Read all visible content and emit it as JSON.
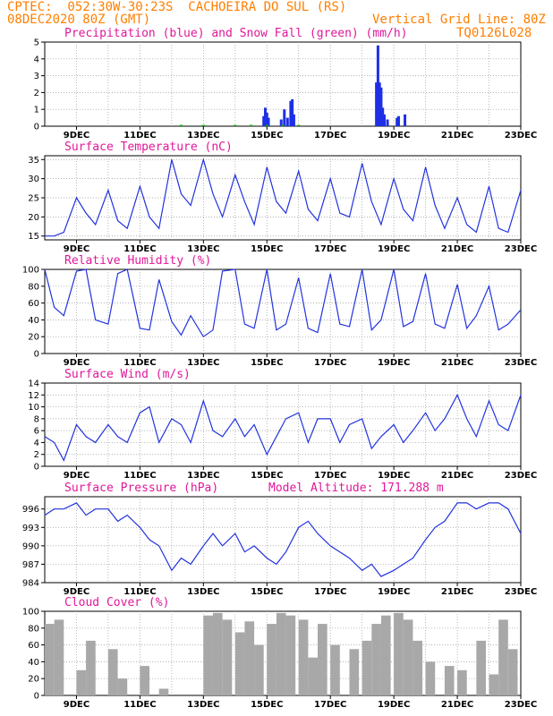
{
  "header": {
    "line1_left": "CPTEC:  052:30W-30:23S  CACHOEIRA DO SUL (RS)",
    "line2_left": "08DEC2020 80Z (GMT)",
    "line2_right": "Vertical Grid Line: 80Z",
    "line3_right": "TQ0126L028"
  },
  "colors": {
    "header": "#ff7f00",
    "title": "#e0189a",
    "line": "#2233dd",
    "rain": "#1e2fe6",
    "snow": "#00b000",
    "cloud": "#a8a8a8",
    "grid": "#999999"
  },
  "x_labels": [
    "9DEC",
    "11DEC",
    "13DEC",
    "15DEC",
    "17DEC",
    "19DEC",
    "21DEC",
    "23DEC"
  ],
  "chart_data": [
    {
      "type": "bar",
      "title": "Precipitation (blue) and Snow Fall (green) (mm/h)",
      "ylim": [
        0,
        5
      ],
      "yticks": [
        "0",
        "1",
        "2",
        "3",
        "4",
        "5"
      ],
      "series": [
        {
          "name": "precipitation",
          "color": "blue",
          "x": [
            14.9,
            14.95,
            15.0,
            15.05,
            15.45,
            15.55,
            15.65,
            15.75,
            15.8,
            15.85,
            18.45,
            18.5,
            18.55,
            18.6,
            18.65,
            18.7,
            18.8,
            19.1,
            19.15,
            19.35
          ],
          "values": [
            0.6,
            1.1,
            0.8,
            0.5,
            0.4,
            1.0,
            0.5,
            1.5,
            1.6,
            0.7,
            2.6,
            4.8,
            2.6,
            2.3,
            1.1,
            0.7,
            0.4,
            0.5,
            0.6,
            0.7
          ]
        },
        {
          "name": "snow fall",
          "color": "green",
          "x": [
            12.3,
            13.0,
            14.0,
            14.5,
            15.0,
            15.5,
            16.0
          ],
          "values": [
            0.08,
            0.08,
            0.08,
            0.08,
            0.08,
            0.08,
            0.08
          ]
        }
      ]
    },
    {
      "type": "line",
      "title": "Surface Temperature (nC)",
      "ylim": [
        14,
        36
      ],
      "yticks": [
        "15",
        "20",
        "25",
        "30",
        "35"
      ],
      "x": [
        8.0,
        8.3,
        8.6,
        9.0,
        9.3,
        9.6,
        10.0,
        10.3,
        10.6,
        11.0,
        11.3,
        11.6,
        12.0,
        12.3,
        12.6,
        13.0,
        13.3,
        13.6,
        14.0,
        14.3,
        14.6,
        15.0,
        15.3,
        15.6,
        16.0,
        16.3,
        16.6,
        17.0,
        17.3,
        17.6,
        18.0,
        18.3,
        18.6,
        19.0,
        19.3,
        19.6,
        20.0,
        20.3,
        20.6,
        21.0,
        21.3,
        21.6,
        22.0,
        22.3,
        22.6,
        23.0
      ],
      "values": [
        15,
        15,
        16,
        25,
        21,
        18,
        27,
        19,
        17,
        28,
        20,
        17,
        35,
        26,
        23,
        35,
        26,
        20,
        31,
        24,
        18,
        33,
        24,
        21,
        32,
        22,
        19,
        30,
        21,
        20,
        34,
        24,
        18,
        30,
        22,
        19,
        33,
        23,
        17,
        25,
        18,
        16,
        28,
        17,
        16,
        27
      ]
    },
    {
      "type": "line",
      "title": "Relative Humidity (%)",
      "ylim": [
        0,
        100
      ],
      "yticks": [
        "0",
        "20",
        "40",
        "60",
        "80",
        "100"
      ],
      "x": [
        8.0,
        8.3,
        8.6,
        9.0,
        9.3,
        9.6,
        10.0,
        10.3,
        10.6,
        11.0,
        11.3,
        11.6,
        12.0,
        12.3,
        12.6,
        13.0,
        13.3,
        13.6,
        14.0,
        14.3,
        14.6,
        15.0,
        15.3,
        15.6,
        16.0,
        16.3,
        16.6,
        17.0,
        17.3,
        17.6,
        18.0,
        18.3,
        18.6,
        19.0,
        19.3,
        19.6,
        20.0,
        20.3,
        20.6,
        21.0,
        21.3,
        21.6,
        22.0,
        22.3,
        22.6,
        23.0
      ],
      "values": [
        100,
        55,
        45,
        98,
        100,
        40,
        35,
        95,
        100,
        30,
        28,
        88,
        38,
        22,
        45,
        20,
        28,
        98,
        100,
        35,
        30,
        100,
        28,
        35,
        90,
        30,
        25,
        95,
        35,
        32,
        100,
        28,
        40,
        100,
        32,
        38,
        95,
        35,
        30,
        82,
        30,
        45,
        80,
        28,
        35,
        52
      ]
    },
    {
      "type": "line",
      "title": "Surface Wind (m/s)",
      "ylim": [
        0,
        14
      ],
      "yticks": [
        "0",
        "2",
        "4",
        "6",
        "8",
        "10",
        "12",
        "14"
      ],
      "x": [
        8.0,
        8.3,
        8.6,
        9.0,
        9.3,
        9.6,
        10.0,
        10.3,
        10.6,
        11.0,
        11.3,
        11.6,
        12.0,
        12.3,
        12.6,
        13.0,
        13.3,
        13.6,
        14.0,
        14.3,
        14.6,
        15.0,
        15.3,
        15.6,
        16.0,
        16.3,
        16.6,
        17.0,
        17.3,
        17.6,
        18.0,
        18.3,
        18.6,
        19.0,
        19.3,
        19.6,
        20.0,
        20.3,
        20.6,
        21.0,
        21.3,
        21.6,
        22.0,
        22.3,
        22.6,
        23.0
      ],
      "values": [
        5,
        4,
        1,
        7,
        5,
        4,
        7,
        5,
        4,
        9,
        10,
        4,
        8,
        7,
        4,
        11,
        6,
        5,
        8,
        5,
        7,
        2,
        5,
        8,
        9,
        4,
        8,
        8,
        4,
        7,
        8,
        3,
        5,
        7,
        4,
        6,
        9,
        6,
        8,
        12,
        8,
        5,
        11,
        7,
        6,
        12
      ]
    },
    {
      "type": "line",
      "title": "Surface Pressure (hPa)",
      "annotation": "Model Altitude: 171.288 m",
      "ylim": [
        984,
        998
      ],
      "yticks": [
        "984",
        "987",
        "990",
        "993",
        "996"
      ],
      "x": [
        8.0,
        8.3,
        8.6,
        9.0,
        9.3,
        9.6,
        10.0,
        10.3,
        10.6,
        11.0,
        11.3,
        11.6,
        12.0,
        12.3,
        12.6,
        13.0,
        13.3,
        13.6,
        14.0,
        14.3,
        14.6,
        15.0,
        15.3,
        15.6,
        16.0,
        16.3,
        16.6,
        17.0,
        17.3,
        17.6,
        18.0,
        18.3,
        18.6,
        19.0,
        19.3,
        19.6,
        20.0,
        20.3,
        20.6,
        21.0,
        21.3,
        21.6,
        22.0,
        22.3,
        22.6,
        23.0
      ],
      "values": [
        995,
        996,
        996,
        997,
        995,
        996,
        996,
        994,
        995,
        993,
        991,
        990,
        986,
        988,
        987,
        990,
        992,
        990,
        992,
        989,
        990,
        988,
        987,
        989,
        993,
        994,
        992,
        990,
        989,
        988,
        986,
        987,
        985,
        986,
        987,
        988,
        991,
        993,
        994,
        997,
        997,
        996,
        997,
        997,
        996,
        992
      ]
    },
    {
      "type": "bar",
      "title": "Cloud Cover (%)",
      "ylim": [
        0,
        100
      ],
      "yticks": [
        "0",
        "20",
        "40",
        "60",
        "80",
        "100"
      ],
      "x": [
        8.0,
        8.3,
        8.6,
        9.0,
        9.3,
        9.6,
        10.0,
        10.3,
        10.6,
        11.0,
        11.3,
        11.6,
        12.0,
        12.3,
        12.6,
        13.0,
        13.3,
        13.6,
        14.0,
        14.3,
        14.6,
        15.0,
        15.3,
        15.6,
        16.0,
        16.3,
        16.6,
        17.0,
        17.3,
        17.6,
        18.0,
        18.3,
        18.6,
        19.0,
        19.3,
        19.6,
        20.0,
        20.3,
        20.6,
        21.0,
        21.3,
        21.6,
        22.0,
        22.3,
        22.6,
        23.0
      ],
      "values": [
        85,
        90,
        0,
        30,
        65,
        0,
        55,
        20,
        0,
        35,
        0,
        8,
        0,
        0,
        0,
        95,
        98,
        90,
        75,
        88,
        60,
        85,
        98,
        95,
        90,
        45,
        85,
        60,
        0,
        55,
        65,
        85,
        95,
        98,
        90,
        65,
        40,
        0,
        35,
        30,
        0,
        65,
        25,
        90,
        55,
        0
      ]
    }
  ]
}
